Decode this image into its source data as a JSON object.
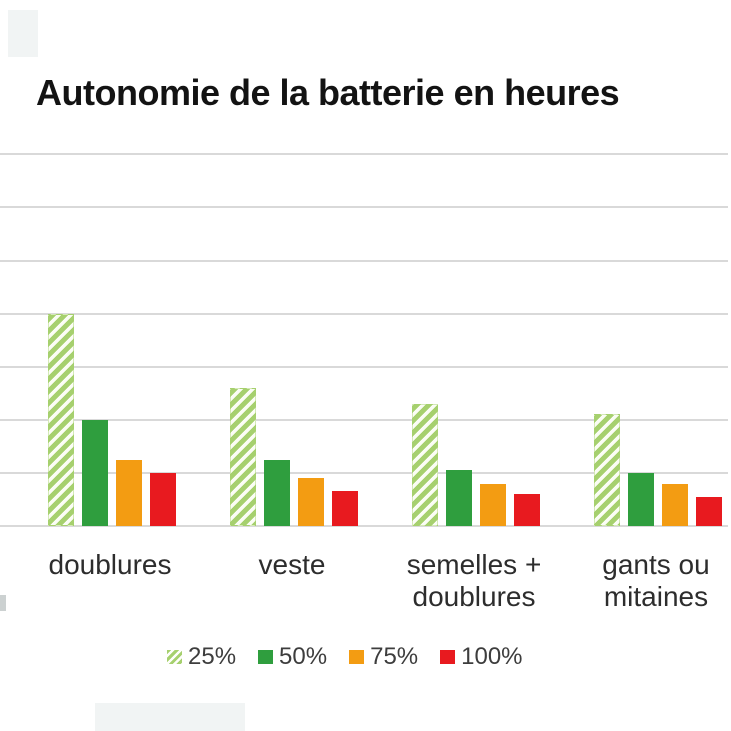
{
  "title": "Autonomie de la batterie en heures",
  "chart_data": {
    "type": "bar",
    "title": "Autonomie de la batterie en heures",
    "unit": "heures",
    "categories": [
      "doublures",
      "veste",
      "semelles + doublures",
      "gants ou mitaines"
    ],
    "category_label_lines": [
      [
        "doublures"
      ],
      [
        "veste"
      ],
      [
        "semelles +",
        "doublures"
      ],
      [
        "gants ou",
        "mitaines"
      ]
    ],
    "series": [
      {
        "name": "25%",
        "style": "hatched",
        "color": "#a6d06e",
        "values": [
          4.0,
          2.6,
          2.3,
          2.1
        ]
      },
      {
        "name": "50%",
        "style": "solid",
        "color": "#2f9e3e",
        "values": [
          2.0,
          1.25,
          1.05,
          1.0
        ]
      },
      {
        "name": "75%",
        "style": "solid",
        "color": "#f39c12",
        "values": [
          1.25,
          0.9,
          0.8,
          0.8
        ]
      },
      {
        "name": "100%",
        "style": "solid",
        "color": "#e81a1f",
        "values": [
          1.0,
          0.65,
          0.6,
          0.55
        ]
      }
    ],
    "ylim": [
      0,
      7
    ],
    "gridline_step": 1,
    "grid": true,
    "y_axis_tick_labels_visible": false,
    "legend_position": "bottom"
  },
  "legend": {
    "items": [
      {
        "label": "25%",
        "swatch": "hatched",
        "color": "#a6d06e"
      },
      {
        "label": "50%",
        "swatch": "solid",
        "color": "#2f9e3e"
      },
      {
        "label": "75%",
        "swatch": "solid",
        "color": "#f39c12"
      },
      {
        "label": "100%",
        "swatch": "solid",
        "color": "#e81a1f"
      }
    ]
  },
  "colors": {
    "background": "#ffffff",
    "gridline": "#d9d9d9",
    "title_text": "#131313",
    "category_text": "#2d2d2d",
    "legend_text": "#3d3d3d"
  }
}
